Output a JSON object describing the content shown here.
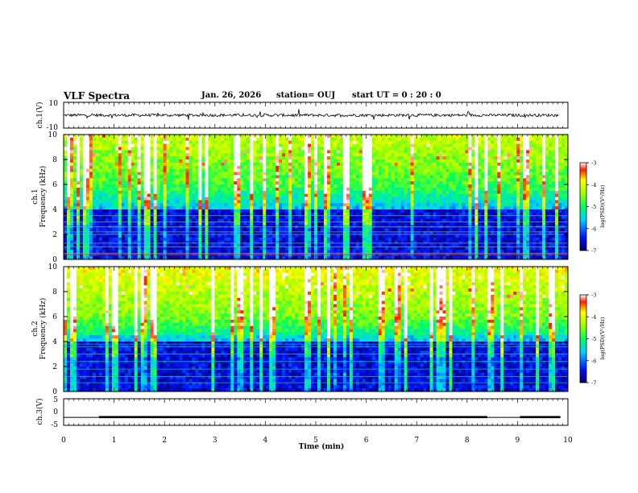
{
  "header": {
    "title": "VLF Spectra",
    "date": "Jan. 26, 2026",
    "station": "station= OUJ",
    "start": "start  UT =   0 : 20 : 0"
  },
  "chart_data": [
    {
      "type": "line",
      "ylabel": "ch.1(V)",
      "ylim": [
        -10,
        10
      ],
      "yticks": [
        "10",
        "-10"
      ],
      "description_series": "noise waveform, mean about 0 V"
    },
    {
      "type": "heatmap",
      "ylabel_top": "ch.1",
      "ylabel": "Frequency  (kHz)",
      "ylim": [
        0,
        10
      ],
      "yticks": [
        "0",
        "2",
        "4",
        "6",
        "8",
        "10"
      ],
      "colorbar": {
        "label": "log(PSD)(V²/Hz)",
        "range": [
          -7,
          -3
        ],
        "ticks": [
          "-3",
          "-4",
          "-5",
          "-6",
          "-7"
        ]
      }
    },
    {
      "type": "heatmap",
      "ylabel_top": "ch.2",
      "ylabel": "Frequency  (kHz)",
      "ylim": [
        0,
        10
      ],
      "yticks": [
        "0",
        "2",
        "4",
        "6",
        "8",
        "10"
      ],
      "colorbar": {
        "label": "log(PSD)(V²/Hz)",
        "range": [
          -7,
          -3
        ],
        "ticks": [
          "-3",
          "-4",
          "-5",
          "-6",
          "-7"
        ]
      }
    },
    {
      "type": "line",
      "ylabel": "ch.3(V)",
      "ylim": [
        -5,
        5
      ],
      "yticks": [
        "5",
        "0",
        "-5"
      ],
      "baseline": -2,
      "segments": [
        [
          0,
          0.7,
          -2
        ],
        [
          0.7,
          8.4,
          -1.5
        ],
        [
          8.4,
          9.05,
          -2
        ],
        [
          9.05,
          9.85,
          -1.5
        ]
      ]
    }
  ],
  "xaxis": {
    "label": "Time  (min)",
    "range": [
      0,
      10
    ],
    "ticks": [
      "0",
      "1",
      "2",
      "3",
      "4",
      "5",
      "6",
      "7",
      "8",
      "9",
      "10"
    ]
  },
  "colors": {
    "deep": "#00003c",
    "blue": "#1030e0",
    "cyan": "#20e0e0",
    "green": "#20f020",
    "yellow": "#f0f000",
    "red": "#e01010"
  }
}
